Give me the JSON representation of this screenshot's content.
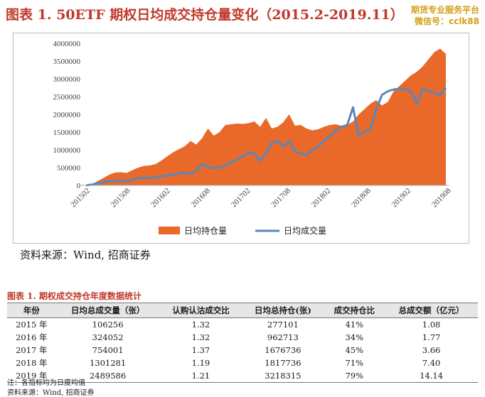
{
  "header": {
    "title": "图表 1. 50ETF 期权日均成交持仓量变化（2015.2-2019.11）",
    "watermark_line1": "期货专业服务平台",
    "watermark_line2": "微信号：cclk88"
  },
  "colors": {
    "area": "#e8692a",
    "line": "#5b87b8",
    "title": "#c0392b"
  },
  "chart_data": {
    "type": "area",
    "x_tick_labels": [
      "201502",
      "201508",
      "201602",
      "201608",
      "201702",
      "201708",
      "201802",
      "201808",
      "201902",
      "201908"
    ],
    "y_tick_labels": [
      "0",
      "500000",
      "1000000",
      "1500000",
      "2000000",
      "2500000",
      "3000000",
      "3500000",
      "4000000"
    ],
    "ylim": [
      0,
      4000000
    ],
    "grid": false,
    "legend_position": "bottom",
    "series": [
      {
        "name": "日均持仓量",
        "type": "area",
        "values": [
          0,
          30000,
          120000,
          210000,
          300000,
          360000,
          370000,
          350000,
          430000,
          500000,
          550000,
          560000,
          600000,
          700000,
          820000,
          930000,
          1020000,
          1100000,
          1250000,
          1150000,
          1330000,
          1600000,
          1400000,
          1500000,
          1700000,
          1720000,
          1740000,
          1730000,
          1750000,
          1800000,
          1650000,
          1900000,
          1600000,
          1650000,
          1780000,
          2000000,
          1680000,
          1700000,
          1600000,
          1550000,
          1580000,
          1650000,
          1700000,
          1720000,
          1680000,
          1700000,
          1800000,
          2000000,
          2150000,
          2300000,
          2400000,
          2250000,
          2350000,
          2650000,
          2800000,
          2950000,
          3100000,
          3200000,
          3350000,
          3550000,
          3750000,
          3850000,
          3700000
        ]
      },
      {
        "name": "日均成交量",
        "type": "line",
        "values": [
          0,
          20000,
          60000,
          90000,
          120000,
          130000,
          130000,
          120000,
          160000,
          200000,
          210000,
          190000,
          230000,
          250000,
          280000,
          300000,
          330000,
          360000,
          330000,
          420000,
          600000,
          520000,
          480000,
          500000,
          560000,
          650000,
          720000,
          820000,
          920000,
          900000,
          700000,
          900000,
          1200000,
          1250000,
          1100000,
          1250000,
          950000,
          900000,
          850000,
          1000000,
          1100000,
          1250000,
          1400000,
          1550000,
          1650000,
          1700000,
          2200000,
          1400000,
          1500000,
          1600000,
          2150000,
          2550000,
          2650000,
          2700000,
          2720000,
          2700000,
          2650000,
          2300000,
          2700000,
          2650000,
          2600000,
          2550000,
          2750000
        ]
      }
    ]
  },
  "source1": "资料来源：Wind, 招商证券",
  "table": {
    "title": "图表 1.  期权成交持仓年度数据统计",
    "headers": [
      "年份",
      "日均总成交量（张）",
      "认购认沽成交比",
      "日均总持仓(张)",
      "成交持仓比",
      "总成交额（亿元）"
    ],
    "rows": [
      [
        "2015 年",
        "106256",
        "1.32",
        "277101",
        "41%",
        "1.08"
      ],
      [
        "2016 年",
        "324052",
        "1.32",
        "962713",
        "34%",
        "1.77"
      ],
      [
        "2017 年",
        "754001",
        "1.37",
        "1676736",
        "45%",
        "3.66"
      ],
      [
        "2018 年",
        "1301281",
        "1.19",
        "1817736",
        "71%",
        "7.40"
      ],
      [
        "2019 年",
        "2489586",
        "1.21",
        "3218315",
        "79%",
        "14.14"
      ]
    ],
    "note1": "注：各指标均为日度均值",
    "note2": "资料来源：Wind, 招商证券"
  }
}
